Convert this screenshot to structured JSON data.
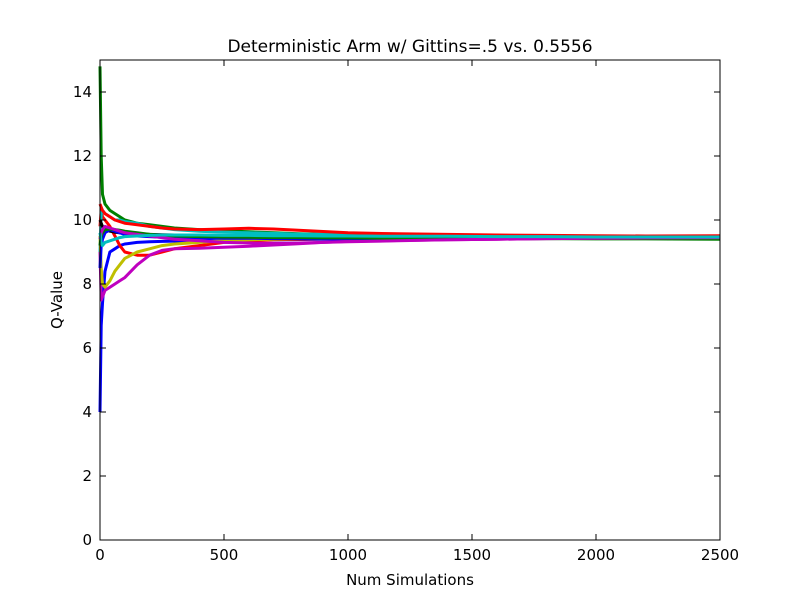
{
  "chart_data": {
    "type": "line",
    "title": "Deterministic Arm w/ Gittins=.5 vs. 0.5556",
    "xlabel": "Num Simulations",
    "ylabel": "Q-Value",
    "xlim": [
      0,
      2500
    ],
    "ylim": [
      0,
      15
    ],
    "x_ticks": [
      0,
      500,
      1000,
      1500,
      2000,
      2500
    ],
    "y_ticks": [
      0,
      2,
      4,
      6,
      8,
      10,
      12,
      14
    ],
    "x_tick_labels": [
      "0",
      "500",
      "1000",
      "1500",
      "2000",
      "2500"
    ],
    "y_tick_labels": [
      "0",
      "2",
      "4",
      "6",
      "8",
      "10",
      "12",
      "14"
    ],
    "grid": false,
    "legend": "none",
    "x": [
      0,
      5,
      10,
      20,
      40,
      60,
      80,
      100,
      150,
      200,
      250,
      300,
      400,
      500,
      600,
      700,
      800,
      900,
      1000,
      1200,
      1400,
      1600,
      1800,
      2000,
      2200,
      2500
    ],
    "series": [
      {
        "color": "#0000ff",
        "values": [
          4.0,
          6.7,
          7.4,
          8.4,
          9.0,
          9.1,
          9.2,
          9.25,
          9.3,
          9.32,
          9.33,
          9.34,
          9.35,
          9.33,
          9.36,
          9.38,
          9.39,
          9.4,
          9.41,
          9.42,
          9.43,
          9.44,
          9.45,
          9.46,
          9.46,
          9.46
        ]
      },
      {
        "color": "#008000",
        "values": [
          14.8,
          12.0,
          10.8,
          10.5,
          10.3,
          10.2,
          10.1,
          10.0,
          9.9,
          9.85,
          9.8,
          9.75,
          9.7,
          9.66,
          9.63,
          9.6,
          9.57,
          9.55,
          9.52,
          9.5,
          9.48,
          9.46,
          9.45,
          9.44,
          9.43,
          9.42
        ]
      },
      {
        "color": "#ff0000",
        "values": [
          9.8,
          10.3,
          10.1,
          10.0,
          9.8,
          9.5,
          9.2,
          9.0,
          8.9,
          8.9,
          9.0,
          9.1,
          9.2,
          9.3,
          9.35,
          9.38,
          9.4,
          9.42,
          9.43,
          9.45,
          9.46,
          9.47,
          9.48,
          9.49,
          9.5,
          9.51
        ]
      },
      {
        "color": "#00bfbf",
        "values": [
          9.0,
          10.2,
          10.3,
          10.2,
          10.1,
          10.0,
          10.0,
          9.95,
          9.9,
          9.8,
          9.75,
          9.7,
          9.65,
          9.62,
          9.6,
          9.58,
          9.56,
          9.55,
          9.53,
          9.52,
          9.5,
          9.49,
          9.48,
          9.48,
          9.47,
          9.47
        ]
      },
      {
        "color": "#bf00bf",
        "values": [
          9.0,
          7.5,
          7.6,
          7.8,
          7.9,
          8.0,
          8.1,
          8.2,
          8.6,
          8.9,
          9.05,
          9.1,
          9.12,
          9.15,
          9.18,
          9.22,
          9.26,
          9.3,
          9.33,
          9.36,
          9.38,
          9.4,
          9.42,
          9.43,
          9.44,
          9.44
        ]
      },
      {
        "color": "#bfbf00",
        "values": [
          9.5,
          8.5,
          8.0,
          7.9,
          8.1,
          8.4,
          8.6,
          8.8,
          9.0,
          9.1,
          9.2,
          9.25,
          9.3,
          9.35,
          9.38,
          9.4,
          9.42,
          9.43,
          9.44,
          9.45,
          9.46,
          9.47,
          9.48,
          9.48,
          9.49,
          9.49
        ]
      },
      {
        "color": "#000000",
        "values": [
          10.0,
          9.9,
          9.8,
          9.7,
          9.65,
          9.62,
          9.6,
          9.58,
          9.56,
          9.55,
          9.54,
          9.53,
          9.52,
          9.51,
          9.5,
          9.5,
          9.49,
          9.49,
          9.48,
          9.48,
          9.47,
          9.47,
          9.46,
          9.46,
          9.45,
          9.45
        ]
      },
      {
        "color": "#0000ff",
        "values": [
          8.5,
          9.2,
          9.4,
          9.6,
          9.7,
          9.65,
          9.6,
          9.55,
          9.5,
          9.48,
          9.46,
          9.45,
          9.44,
          9.43,
          9.43,
          9.42,
          9.42,
          9.42,
          9.42,
          9.43,
          9.43,
          9.44,
          9.44,
          9.45,
          9.45,
          9.45
        ]
      },
      {
        "color": "#ff0000",
        "values": [
          10.5,
          10.4,
          10.3,
          10.2,
          10.1,
          10.0,
          9.95,
          9.9,
          9.85,
          9.8,
          9.75,
          9.72,
          9.7,
          9.72,
          9.74,
          9.72,
          9.68,
          9.64,
          9.6,
          9.57,
          9.55,
          9.53,
          9.52,
          9.51,
          9.5,
          9.5
        ]
      },
      {
        "color": "#008000",
        "values": [
          9.2,
          9.5,
          9.6,
          9.7,
          9.72,
          9.7,
          9.68,
          9.65,
          9.6,
          9.55,
          9.52,
          9.5,
          9.48,
          9.47,
          9.46,
          9.45,
          9.45,
          9.44,
          9.44,
          9.43,
          9.43,
          9.42,
          9.42,
          9.41,
          9.41,
          9.4
        ]
      },
      {
        "color": "#bf00bf",
        "values": [
          9.4,
          9.6,
          9.7,
          9.8,
          9.75,
          9.7,
          9.65,
          9.6,
          9.55,
          9.5,
          9.45,
          9.4,
          9.35,
          9.3,
          9.28,
          9.27,
          9.28,
          9.3,
          9.32,
          9.35,
          9.38,
          9.4,
          9.42,
          9.43,
          9.44,
          9.45
        ]
      },
      {
        "color": "#00bfbf",
        "values": [
          9.6,
          9.3,
          9.2,
          9.3,
          9.35,
          9.4,
          9.45,
          9.48,
          9.5,
          9.52,
          9.53,
          9.53,
          9.53,
          9.52,
          9.52,
          9.51,
          9.51,
          9.5,
          9.5,
          9.49,
          9.49,
          9.48,
          9.48,
          9.47,
          9.47,
          9.47
        ]
      }
    ]
  }
}
